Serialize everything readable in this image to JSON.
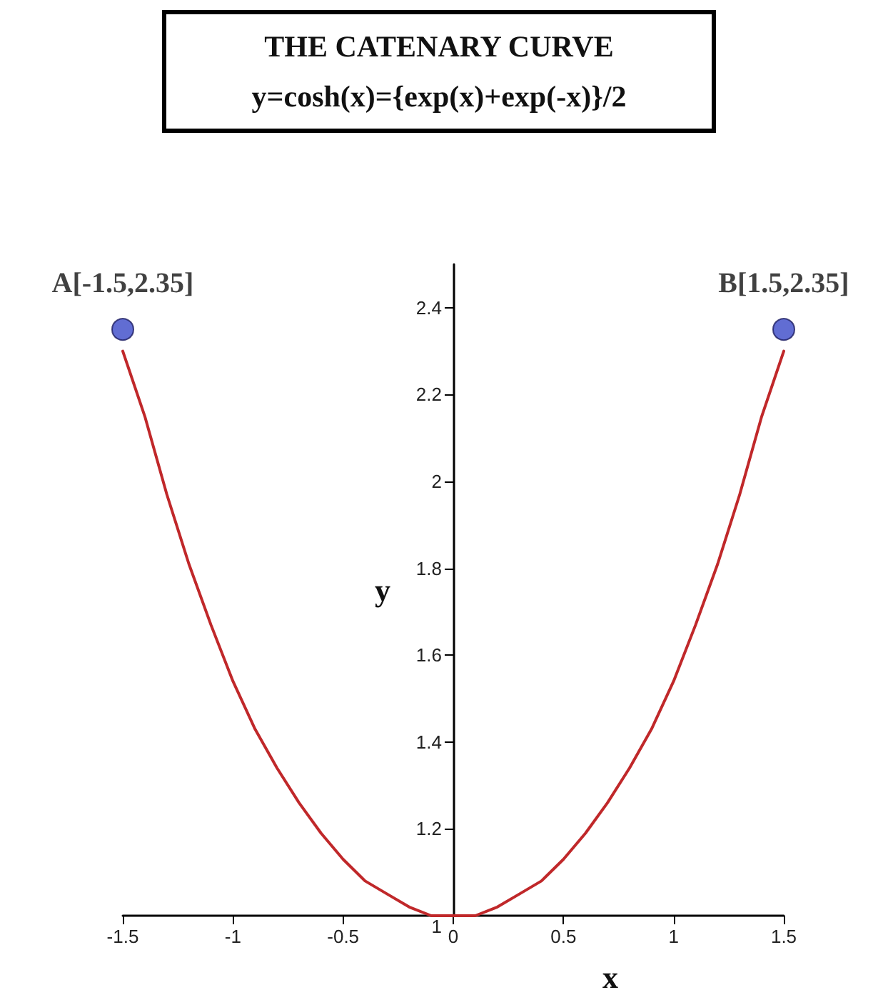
{
  "chart_data": {
    "type": "line",
    "title": "THE CATENARY CURVE",
    "subtitle": "y=cosh(x)={exp(x)+exp(-x)}/2",
    "xlabel": "x",
    "ylabel": "y",
    "xlim": [
      -1.5,
      1.5
    ],
    "xticks": [
      -1.5,
      -1,
      -0.5,
      0,
      0.5,
      1,
      1.5
    ],
    "ylim": [
      1,
      2.5
    ],
    "yticks": [
      1,
      1.2,
      1.4,
      1.6,
      1.8,
      2,
      2.2,
      2.4
    ],
    "series": [
      {
        "color": "#c0282a",
        "marker": "none",
        "line_style": "solid",
        "x": [
          -1.5,
          -1.4,
          -1.3,
          -1.2,
          -1.1,
          -1.0,
          -0.9,
          -0.8,
          -0.7,
          -0.6,
          -0.5,
          -0.4,
          -0.3,
          -0.2,
          -0.1,
          0,
          0.1,
          0.2,
          0.3,
          0.4,
          0.5,
          0.6,
          0.7,
          0.8,
          0.9,
          1.0,
          1.1,
          1.2,
          1.3,
          1.4,
          1.5
        ],
        "values": [
          2.3,
          2.15,
          1.97,
          1.81,
          1.67,
          1.54,
          1.43,
          1.34,
          1.26,
          1.19,
          1.13,
          1.08,
          1.05,
          1.02,
          1.0,
          1.0,
          1.0,
          1.02,
          1.05,
          1.08,
          1.13,
          1.19,
          1.26,
          1.34,
          1.43,
          1.54,
          1.67,
          1.81,
          1.97,
          2.15,
          2.3
        ]
      },
      {
        "type": "scatter",
        "color": "#3a48c8",
        "marker": "circle",
        "x": [
          -1.5,
          1.5
        ],
        "values": [
          2.35,
          2.35
        ]
      }
    ],
    "annotations": [
      {
        "text": "A[-1.5,2.35]",
        "x": -1.5,
        "y": 2.35
      },
      {
        "text": "B[1.5,2.35]",
        "x": 1.5,
        "y": 2.35
      }
    ]
  }
}
